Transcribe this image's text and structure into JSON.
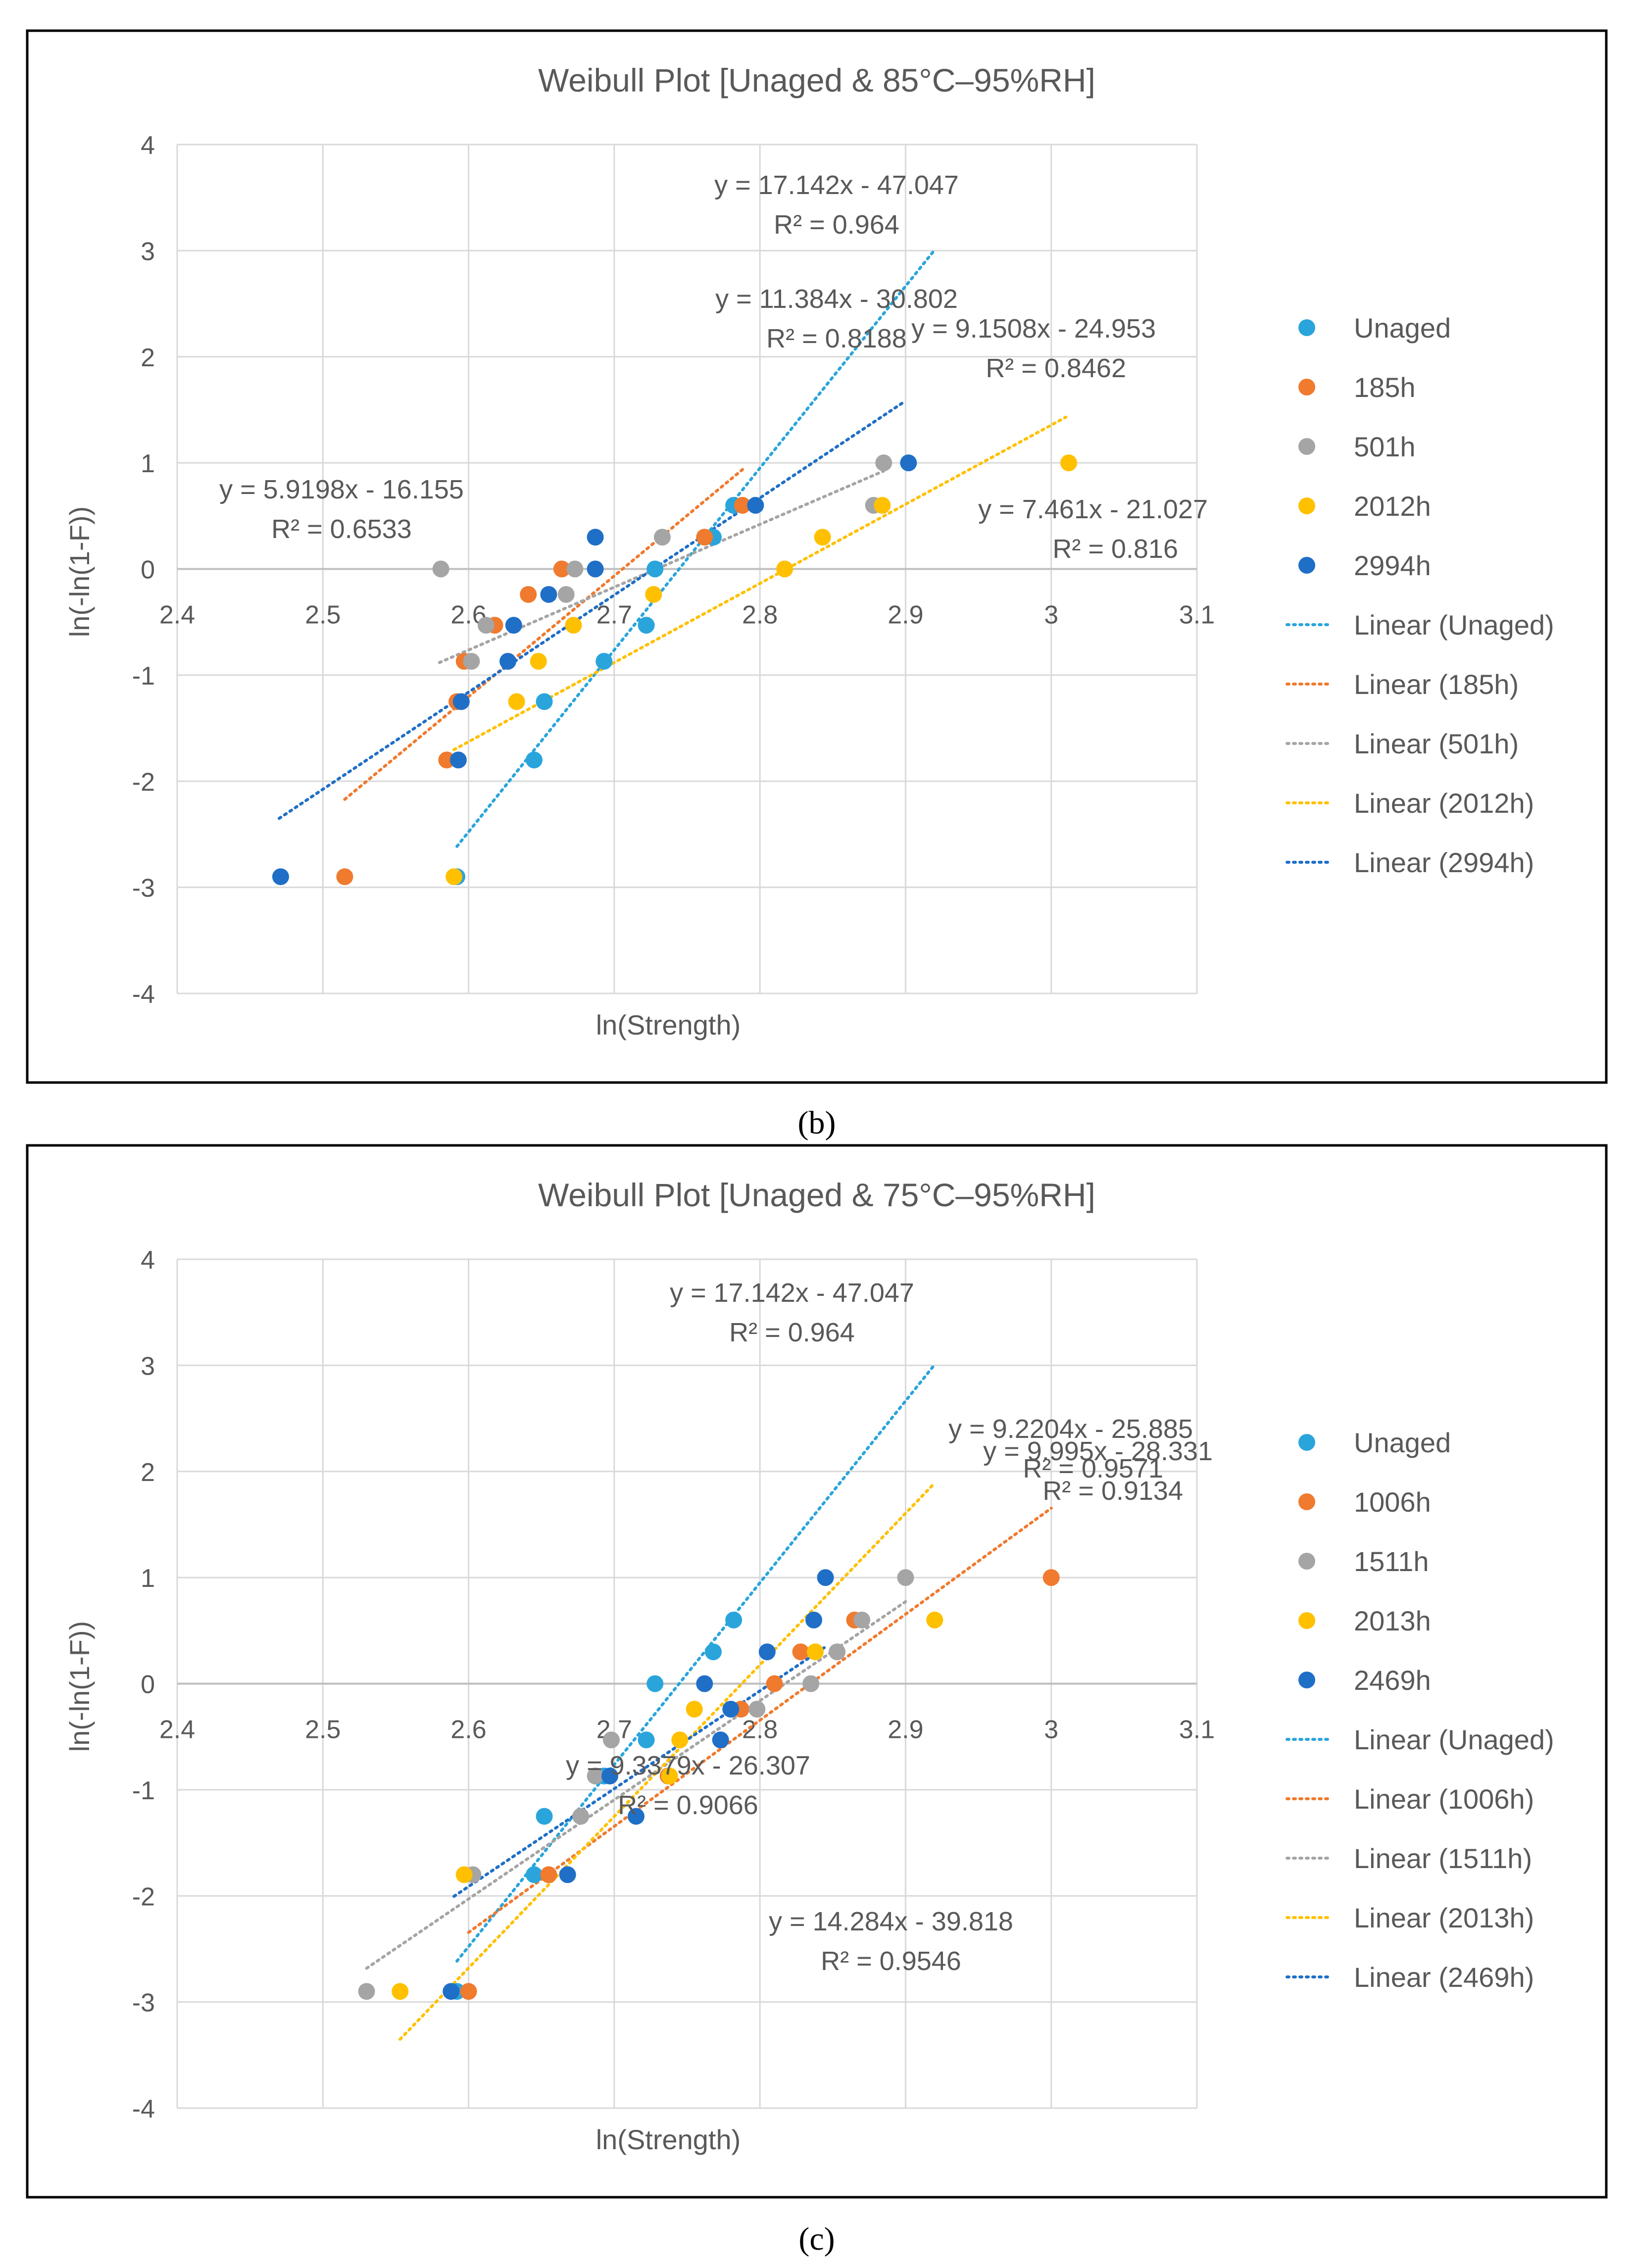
{
  "figure": {
    "panel_labels": [
      "(b)",
      "(c)"
    ]
  },
  "chart_data": [
    {
      "type": "scatter",
      "title": "Weibull Plot [Unaged & 85°C–95%RH]",
      "xlabel": "ln(Strength)",
      "ylabel": "ln(-ln(1-F))",
      "xlim": [
        2.4,
        3.1
      ],
      "ylim": [
        -4,
        4
      ],
      "x_ticks": [
        "2.4",
        "2.5",
        "2.6",
        "2.7",
        "2.8",
        "2.9",
        "3",
        "3.1"
      ],
      "y_ticks": [
        "4",
        "3",
        "2",
        "1",
        "0",
        "-1",
        "-2",
        "-3",
        "-4"
      ],
      "grid": true,
      "legend_position": "right",
      "series": [
        {
          "name": "Unaged",
          "color": "#2aa5dc",
          "points": [
            [
              2.592,
              -2.9
            ],
            [
              2.645,
              -1.8
            ],
            [
              2.652,
              -1.25
            ],
            [
              2.693,
              -0.87
            ],
            [
              2.722,
              -0.53
            ],
            [
              2.728,
              0.0
            ],
            [
              2.768,
              0.3
            ],
            [
              2.782,
              0.6
            ]
          ],
          "trend": {
            "label": "Linear (Unaged)",
            "slope": 17.142,
            "intercept": -47.047,
            "x_range": [
              2.592,
              2.92
            ],
            "equation": "y = 17.142x - 47.047",
            "r2": "R² = 0.964"
          }
        },
        {
          "name": "185h",
          "color": "#f07a2e",
          "points": [
            [
              2.515,
              -2.9
            ],
            [
              2.585,
              -1.8
            ],
            [
              2.592,
              -1.25
            ],
            [
              2.597,
              -0.87
            ],
            [
              2.618,
              -0.53
            ],
            [
              2.641,
              -0.24
            ],
            [
              2.664,
              0.0
            ],
            [
              2.762,
              0.3
            ],
            [
              2.788,
              0.6
            ]
          ],
          "trend": {
            "label": "Linear (185h)",
            "slope": 11.384,
            "intercept": -30.802,
            "x_range": [
              2.515,
              2.79
            ],
            "equation": "y = 11.384x - 30.802",
            "r2": "R² = 0.8188"
          }
        },
        {
          "name": "501h",
          "color": "#a5a5a5",
          "points": [
            [
              2.581,
              0.0
            ],
            [
              2.602,
              -0.87
            ],
            [
              2.612,
              -0.53
            ],
            [
              2.667,
              -0.24
            ],
            [
              2.673,
              0.0
            ],
            [
              2.733,
              0.3
            ],
            [
              2.878,
              0.6
            ],
            [
              2.885,
              1.0
            ]
          ],
          "trend": {
            "label": "Linear (501h)",
            "slope": 5.9198,
            "intercept": -16.155,
            "x_range": [
              2.58,
              2.885
            ],
            "equation": "y = 5.9198x - 16.155",
            "r2": "R² = 0.6533"
          }
        },
        {
          "name": "2012h",
          "color": "#ffc000",
          "points": [
            [
              2.59,
              -2.9
            ],
            [
              2.633,
              -1.25
            ],
            [
              2.648,
              -0.87
            ],
            [
              2.672,
              -0.53
            ],
            [
              2.727,
              -0.24
            ],
            [
              2.817,
              0.0
            ],
            [
              2.843,
              0.3
            ],
            [
              2.884,
              0.6
            ],
            [
              3.012,
              1.0
            ]
          ],
          "trend": {
            "label": "Linear (2012h)",
            "slope": 7.461,
            "intercept": -21.027,
            "x_range": [
              2.59,
              3.01
            ],
            "equation": "y = 7.461x - 21.027",
            "r2": "R² = 0.816"
          }
        },
        {
          "name": "2994h",
          "color": "#1f6fc7",
          "points": [
            [
              2.471,
              -2.9
            ],
            [
              2.593,
              -1.8
            ],
            [
              2.595,
              -1.25
            ],
            [
              2.627,
              -0.87
            ],
            [
              2.631,
              -0.53
            ],
            [
              2.655,
              -0.24
            ],
            [
              2.687,
              0.0
            ],
            [
              2.687,
              0.3
            ],
            [
              2.797,
              0.6
            ],
            [
              2.902,
              1.0
            ]
          ],
          "trend": {
            "label": "Linear (2994h)",
            "slope": 9.1508,
            "intercept": -24.953,
            "x_range": [
              2.47,
              2.9
            ],
            "equation": "y = 9.1508x - 24.953",
            "r2": "R² = 0.8462"
          }
        }
      ]
    },
    {
      "type": "scatter",
      "title": "Weibull Plot [Unaged & 75°C–95%RH]",
      "xlabel": "ln(Strength)",
      "ylabel": "ln(-ln(1-F))",
      "xlim": [
        2.4,
        3.1
      ],
      "ylim": [
        -4,
        4
      ],
      "x_ticks": [
        "2.4",
        "2.5",
        "2.6",
        "2.7",
        "2.8",
        "2.9",
        "3",
        "3.1"
      ],
      "y_ticks": [
        "4",
        "3",
        "2",
        "1",
        "0",
        "-1",
        "-2",
        "-3",
        "-4"
      ],
      "grid": true,
      "legend_position": "right",
      "series": [
        {
          "name": "Unaged",
          "color": "#2aa5dc",
          "points": [
            [
              2.592,
              -2.9
            ],
            [
              2.645,
              -1.8
            ],
            [
              2.652,
              -1.25
            ],
            [
              2.693,
              -0.87
            ],
            [
              2.722,
              -0.53
            ],
            [
              2.728,
              0.0
            ],
            [
              2.768,
              0.3
            ],
            [
              2.782,
              0.6
            ]
          ],
          "trend": {
            "label": "Linear (Unaged)",
            "slope": 17.142,
            "intercept": -47.047,
            "x_range": [
              2.592,
              2.92
            ],
            "equation": "y = 17.142x - 47.047",
            "r2": "R² = 0.964"
          }
        },
        {
          "name": "1006h",
          "color": "#f07a2e",
          "points": [
            [
              2.6,
              -2.9
            ],
            [
              2.655,
              -1.8
            ],
            [
              2.737,
              -0.87
            ],
            [
              2.787,
              -0.24
            ],
            [
              2.81,
              0.0
            ],
            [
              2.828,
              0.3
            ],
            [
              2.865,
              0.6
            ],
            [
              3.0,
              1.0
            ]
          ],
          "trend": {
            "label": "Linear (1006h)",
            "slope": 9.995,
            "intercept": -28.331,
            "x_range": [
              2.6,
              3.0
            ],
            "equation": "y = 9.995x - 28.331",
            "r2": "R² = 0.9134"
          }
        },
        {
          "name": "1511h",
          "color": "#a5a5a5",
          "points": [
            [
              2.53,
              -2.9
            ],
            [
              2.603,
              -1.8
            ],
            [
              2.677,
              -1.25
            ],
            [
              2.687,
              -0.87
            ],
            [
              2.698,
              -0.53
            ],
            [
              2.798,
              -0.24
            ],
            [
              2.835,
              0.0
            ],
            [
              2.853,
              0.3
            ],
            [
              2.87,
              0.6
            ],
            [
              2.9,
              1.0
            ]
          ],
          "trend": {
            "label": "Linear (1511h)",
            "slope": 9.3379,
            "intercept": -26.307,
            "x_range": [
              2.53,
              2.9
            ],
            "equation": "y = 9.3379x - 26.307",
            "r2": "R² = 0.9066"
          }
        },
        {
          "name": "2013h",
          "color": "#ffc000",
          "points": [
            [
              2.553,
              -2.9
            ],
            [
              2.597,
              -1.8
            ],
            [
              2.738,
              -0.87
            ],
            [
              2.745,
              -0.53
            ],
            [
              2.755,
              -0.24
            ],
            [
              2.838,
              0.3
            ],
            [
              2.92,
              0.6
            ]
          ],
          "trend": {
            "label": "Linear (2013h)",
            "slope": 14.284,
            "intercept": -39.818,
            "x_range": [
              2.553,
              2.92
            ],
            "equation": "y = 14.284x - 39.818",
            "r2": "R² = 0.9546"
          }
        },
        {
          "name": "2469h",
          "color": "#1f6fc7",
          "points": [
            [
              2.588,
              -2.9
            ],
            [
              2.668,
              -1.8
            ],
            [
              2.697,
              -0.87
            ],
            [
              2.715,
              -1.25
            ],
            [
              2.762,
              0.0
            ],
            [
              2.773,
              -0.53
            ],
            [
              2.78,
              -0.24
            ],
            [
              2.805,
              0.3
            ],
            [
              2.837,
              0.6
            ],
            [
              2.845,
              1.0
            ]
          ],
          "trend": {
            "label": "Linear (2469h)",
            "slope": 9.2204,
            "intercept": -25.885,
            "x_range": [
              2.59,
              2.845
            ],
            "equation": "y = 9.2204x - 25.885",
            "r2": "R² = 0.9571"
          }
        }
      ]
    }
  ]
}
